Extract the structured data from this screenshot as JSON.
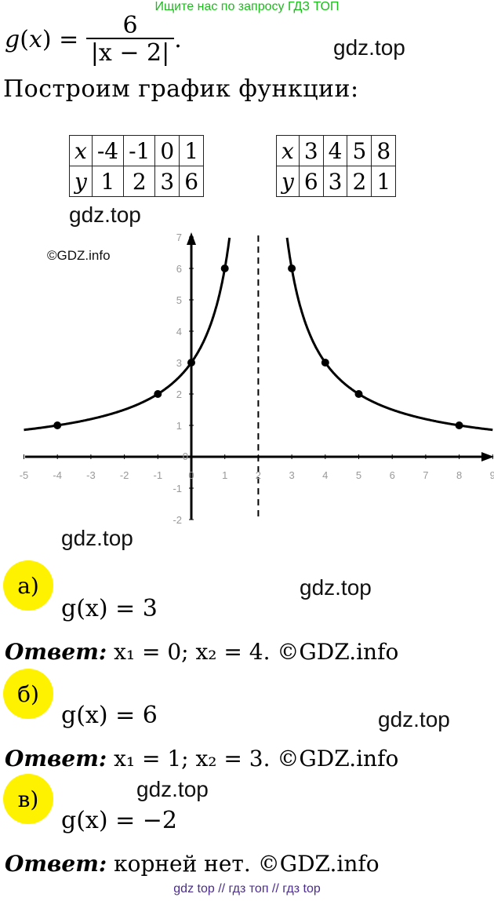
{
  "banner_top": "Ищите нас по запросу ГДЗ ТОП",
  "banner_bottom": "gdz top  //  гдз топ  //  гдз top",
  "watermarks": {
    "gdz_top": "gdz.top",
    "gdz_info": "©GDZ.info"
  },
  "function": {
    "lhs": "g(x) =",
    "numerator": "6",
    "denominator": "|x − 2|",
    "period": "."
  },
  "heading": "Построим график функции:",
  "tables": [
    {
      "x_label": "x",
      "y_label": "y",
      "x": [
        "-4",
        "-1",
        "0",
        "1"
      ],
      "y": [
        "1",
        "2",
        "3",
        "6"
      ]
    },
    {
      "x_label": "x",
      "y_label": "y",
      "x": [
        "3",
        "4",
        "5",
        "8"
      ],
      "y": [
        "6",
        "3",
        "2",
        "1"
      ]
    }
  ],
  "chart_data": {
    "type": "line",
    "function": "6/|x-2|",
    "xlim": [
      -5,
      9
    ],
    "ylim": [
      -2,
      7
    ],
    "x_ticks": [
      "-5",
      "-4",
      "-3",
      "-2",
      "-1",
      "0",
      "1",
      "2",
      "3",
      "4",
      "5",
      "6",
      "7",
      "8",
      "9"
    ],
    "y_ticks": [
      "-2",
      "-1",
      "0",
      "1",
      "2",
      "3",
      "4",
      "5",
      "6",
      "7"
    ],
    "asymptote_x": 2,
    "points": [
      {
        "x": -4,
        "y": 1
      },
      {
        "x": -1,
        "y": 2
      },
      {
        "x": 0,
        "y": 3
      },
      {
        "x": 1,
        "y": 6
      },
      {
        "x": 3,
        "y": 6
      },
      {
        "x": 4,
        "y": 3
      },
      {
        "x": 5,
        "y": 2
      },
      {
        "x": 8,
        "y": 1
      }
    ],
    "grid": false
  },
  "parts": [
    {
      "label": "а)",
      "equation": "g(x) = 3",
      "answer_label": "Ответ:",
      "answer": "x₁ = 0; x₂ = 4.",
      "source": "©GDZ.info"
    },
    {
      "label": "б)",
      "equation": "g(x) = 6",
      "answer_label": "Ответ:",
      "answer": "x₁ = 1; x₂ = 3.",
      "source": "©GDZ.info"
    },
    {
      "label": "в)",
      "equation": "g(x) = −2",
      "answer_label": "Ответ:",
      "answer": "корней нет.",
      "source": "©GDZ.info"
    }
  ],
  "colors": {
    "highlight": "#fff200",
    "banner_top": "#1dbb1d",
    "banner_bottom": "#4b2d8c"
  }
}
